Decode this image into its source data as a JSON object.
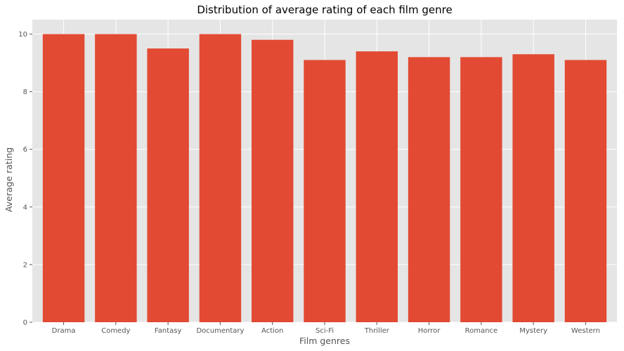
{
  "chart_data": {
    "type": "bar",
    "title": "Distribution of average rating of each film genre",
    "xlabel": "Film genres",
    "ylabel": "Average rating",
    "categories": [
      "Drama",
      "Comedy",
      "Fantasy",
      "Documentary",
      "Action",
      "Sci-Fi",
      "Thriller",
      "Horror",
      "Romance",
      "Mystery",
      "Western"
    ],
    "values": [
      10.0,
      10.0,
      9.5,
      10.0,
      9.8,
      9.1,
      9.4,
      9.2,
      9.2,
      9.3,
      9.1
    ],
    "ylim": [
      0,
      10.5
    ],
    "yticks": [
      0,
      2,
      4,
      6,
      8,
      10
    ],
    "grid": true,
    "legend": "none",
    "colors": {
      "bar": "#E24A33",
      "plot_background": "#E5E5E5",
      "grid": "#FFFFFF",
      "text": "#555555"
    }
  }
}
